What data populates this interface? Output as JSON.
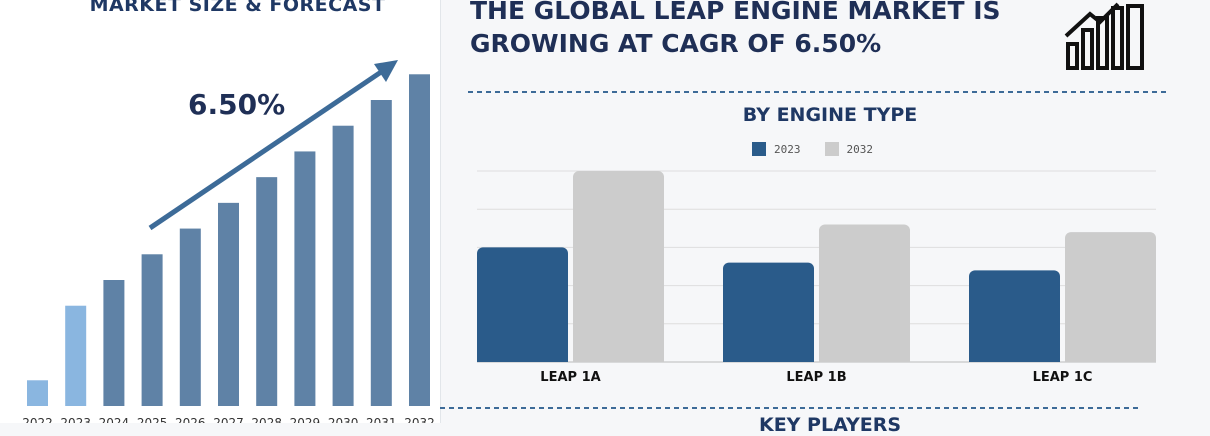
{
  "left_title": "MARKET SIZE & FORECAST",
  "cagr": "6.50%",
  "right_title_lines": [
    "THE GLOBAL LEAP ENGINE MARKET IS",
    "GROWING AT CAGR OF 6.50%"
  ],
  "icon": "growth-chart-icon",
  "colors": {
    "dark_blue": "#2a5b8a",
    "light_gray": "#cccccc",
    "history_blue": "#8ab6e0",
    "forecast_blue": "#5f82a6",
    "arrow": "#3d6b98",
    "dashed": "#3d6b98"
  },
  "key_players": "KEY PLAYERS",
  "chart_data": [
    {
      "type": "bar",
      "categories": [
        "2022",
        "2023",
        "2024",
        "2025",
        "2026",
        "2027",
        "2028",
        "2029",
        "2030",
        "2031",
        "2032"
      ],
      "values": [
        1.0,
        3.9,
        4.9,
        5.9,
        6.9,
        7.9,
        8.9,
        9.9,
        10.9,
        11.9,
        12.9
      ],
      "ylim": [
        0,
        14
      ],
      "grid": false
    },
    {
      "type": "bar",
      "title": "BY ENGINE TYPE",
      "categories": [
        "LEAP 1A",
        "LEAP 1B",
        "LEAP 1C"
      ],
      "series": [
        {
          "name": "2023",
          "values": [
            3.0,
            2.6,
            2.4
          ]
        },
        {
          "name": "2032",
          "values": [
            5.0,
            3.6,
            3.4
          ]
        }
      ],
      "ylim": [
        0,
        5
      ],
      "grid": true,
      "legend": "top-center"
    }
  ]
}
